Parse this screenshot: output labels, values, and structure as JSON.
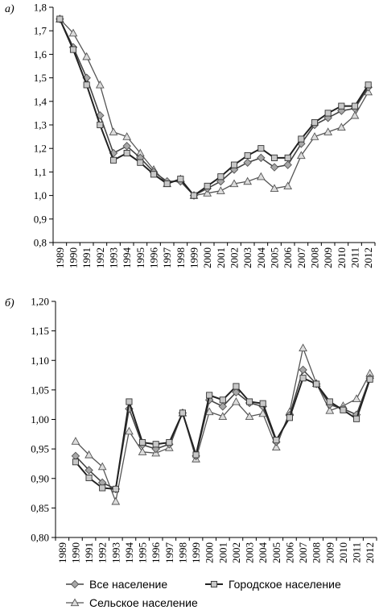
{
  "chart_data": [
    {
      "type": "line",
      "panel_label": "а)",
      "categories": [
        "1989",
        "1990",
        "1991",
        "1992",
        "1993",
        "1994",
        "1995",
        "1996",
        "1997",
        "1998",
        "1999",
        "2000",
        "2001",
        "2002",
        "2003",
        "2004",
        "2005",
        "2006",
        "2007",
        "2008",
        "2009",
        "2010",
        "2011",
        "2012"
      ],
      "ylim": [
        0.8,
        1.8
      ],
      "yticks": [
        "0,8",
        "0,9",
        "1,0",
        "1,1",
        "1,2",
        "1,3",
        "1,4",
        "1,5",
        "1,6",
        "1,7",
        "1,8"
      ],
      "series": [
        {
          "name": "Все население",
          "marker": "diamond",
          "values": [
            1.75,
            1.63,
            1.5,
            1.34,
            1.18,
            1.21,
            1.16,
            1.1,
            1.06,
            1.06,
            1.0,
            1.03,
            1.06,
            1.11,
            1.14,
            1.16,
            1.12,
            1.13,
            1.22,
            1.3,
            1.33,
            1.36,
            1.37,
            1.46
          ]
        },
        {
          "name": "Городское население",
          "marker": "square",
          "values": [
            1.75,
            1.62,
            1.47,
            1.3,
            1.15,
            1.18,
            1.14,
            1.09,
            1.05,
            1.07,
            1.0,
            1.04,
            1.08,
            1.13,
            1.17,
            1.2,
            1.16,
            1.16,
            1.24,
            1.31,
            1.35,
            1.38,
            1.38,
            1.47
          ]
        },
        {
          "name": "Сельское население",
          "marker": "triangle",
          "values": [
            1.75,
            1.69,
            1.59,
            1.47,
            1.27,
            1.25,
            1.18,
            1.11,
            1.05,
            1.07,
            1.0,
            1.01,
            1.02,
            1.05,
            1.06,
            1.08,
            1.03,
            1.04,
            1.17,
            1.25,
            1.27,
            1.29,
            1.34,
            1.44
          ]
        }
      ]
    },
    {
      "type": "line",
      "panel_label": "б)",
      "categories": [
        "1989",
        "1990",
        "1991",
        "1992",
        "1993",
        "1994",
        "1995",
        "1996",
        "1997",
        "1998",
        "1999",
        "2000",
        "2001",
        "2002",
        "2003",
        "2004",
        "2005",
        "2006",
        "2007",
        "2008",
        "2009",
        "2010",
        "2011",
        "2012"
      ],
      "ylim": [
        0.8,
        1.2
      ],
      "yticks": [
        "0,80",
        "0,85",
        "0,90",
        "0,95",
        "1,00",
        "1,05",
        "1,10",
        "1,15",
        "1,20"
      ],
      "series": [
        {
          "name": "Все население",
          "marker": "diamond",
          "values": [
            null,
            0.938,
            0.914,
            0.893,
            0.882,
            1.018,
            0.957,
            0.95,
            0.958,
            1.011,
            0.938,
            1.033,
            1.022,
            1.046,
            1.028,
            1.022,
            0.962,
            1.007,
            1.084,
            1.06,
            1.025,
            1.018,
            1.008,
            1.07
          ]
        },
        {
          "name": "Городское население",
          "marker": "square",
          "values": [
            null,
            0.928,
            0.901,
            0.884,
            0.882,
            1.03,
            0.961,
            0.958,
            0.961,
            1.011,
            0.94,
            1.041,
            1.033,
            1.056,
            1.03,
            1.027,
            0.965,
            1.003,
            1.07,
            1.06,
            1.03,
            1.016,
            1.001,
            1.068
          ]
        },
        {
          "name": "Сельское население",
          "marker": "triangle",
          "values": [
            null,
            0.963,
            0.94,
            0.92,
            0.861,
            0.98,
            0.945,
            0.943,
            0.952,
            1.011,
            0.933,
            1.013,
            1.005,
            1.03,
            1.005,
            1.01,
            0.953,
            1.013,
            1.121,
            1.061,
            1.015,
            1.023,
            1.035,
            1.078
          ]
        }
      ]
    }
  ],
  "legend": {
    "items": [
      {
        "label": "Все население",
        "marker": "diamond"
      },
      {
        "label": "Городское население",
        "marker": "square"
      },
      {
        "label": "Сельское население",
        "marker": "triangle"
      }
    ]
  }
}
